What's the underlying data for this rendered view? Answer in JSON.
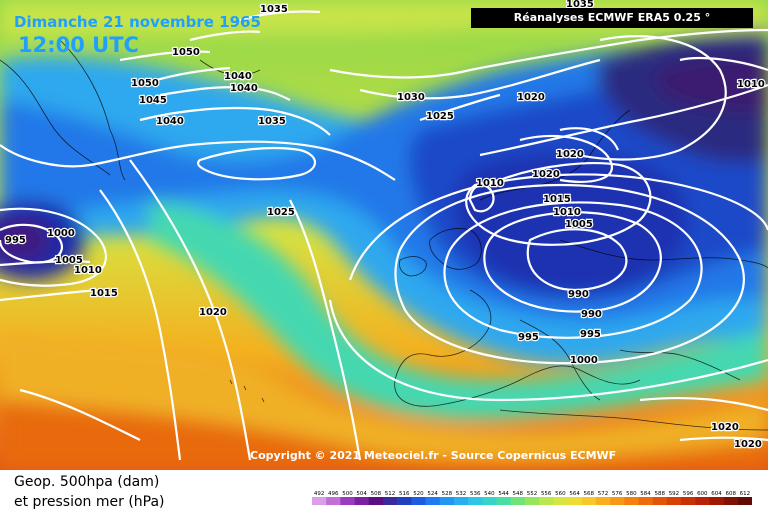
{
  "header": {
    "date": "Dimanche 21 novembre 1965",
    "time": "12:00 UTC",
    "source": "Réanalyses ECMWF ERA5 0.25 °"
  },
  "copyright": "Copyright © 2021 Meteociel.fr - Source Copernicus ECMWF",
  "legend": {
    "title_line1": "Geop. 500hpa (dam)",
    "title_line2": "et pression mer (hPa)",
    "scale_values": [
      "492",
      "496",
      "500",
      "504",
      "508",
      "512",
      "516",
      "520",
      "524",
      "528",
      "532",
      "536",
      "540",
      "544",
      "548",
      "552",
      "556",
      "560",
      "564",
      "568",
      "572",
      "576",
      "580",
      "584",
      "588",
      "592",
      "596",
      "600",
      "604",
      "608",
      "612"
    ],
    "scale_colors": [
      "#d9a0e8",
      "#c070d8",
      "#9a3cc0",
      "#7a20a0",
      "#5a1080",
      "#3a2a9c",
      "#2040c0",
      "#1c5ce0",
      "#1f7cf0",
      "#2196f2",
      "#29aef0",
      "#2ec6e6",
      "#35d6c8",
      "#4adfa0",
      "#6fe47a",
      "#95e65c",
      "#b8e84a",
      "#d6e640",
      "#ecdc34",
      "#f6c82a",
      "#f8b020",
      "#f89818",
      "#f48010",
      "#ee6a0a",
      "#e45408",
      "#d84006",
      "#c83006",
      "#b82206",
      "#a01804",
      "#801004",
      "#600c04"
    ]
  },
  "map": {
    "pressure_labels": [
      {
        "text": "1035"
      },
      {
        "text": "1035"
      },
      {
        "text": "1050"
      },
      {
        "text": "1050"
      },
      {
        "text": "1045"
      },
      {
        "text": "1040"
      },
      {
        "text": "1040"
      },
      {
        "text": "1040"
      },
      {
        "text": "1035"
      },
      {
        "text": "1030"
      },
      {
        "text": "1025"
      },
      {
        "text": "1020"
      },
      {
        "text": "1010"
      },
      {
        "text": "1020"
      },
      {
        "text": "1020"
      },
      {
        "text": "1010"
      },
      {
        "text": "1015"
      },
      {
        "text": "1010"
      },
      {
        "text": "1005"
      },
      {
        "text": "1025"
      },
      {
        "text": "995"
      },
      {
        "text": "1000"
      },
      {
        "text": "1005"
      },
      {
        "text": "1010"
      },
      {
        "text": "1015"
      },
      {
        "text": "1020"
      },
      {
        "text": "990"
      },
      {
        "text": "990"
      },
      {
        "text": "995"
      },
      {
        "text": "995"
      },
      {
        "text": "1000"
      },
      {
        "text": "1020"
      },
      {
        "text": "1020"
      }
    ]
  }
}
